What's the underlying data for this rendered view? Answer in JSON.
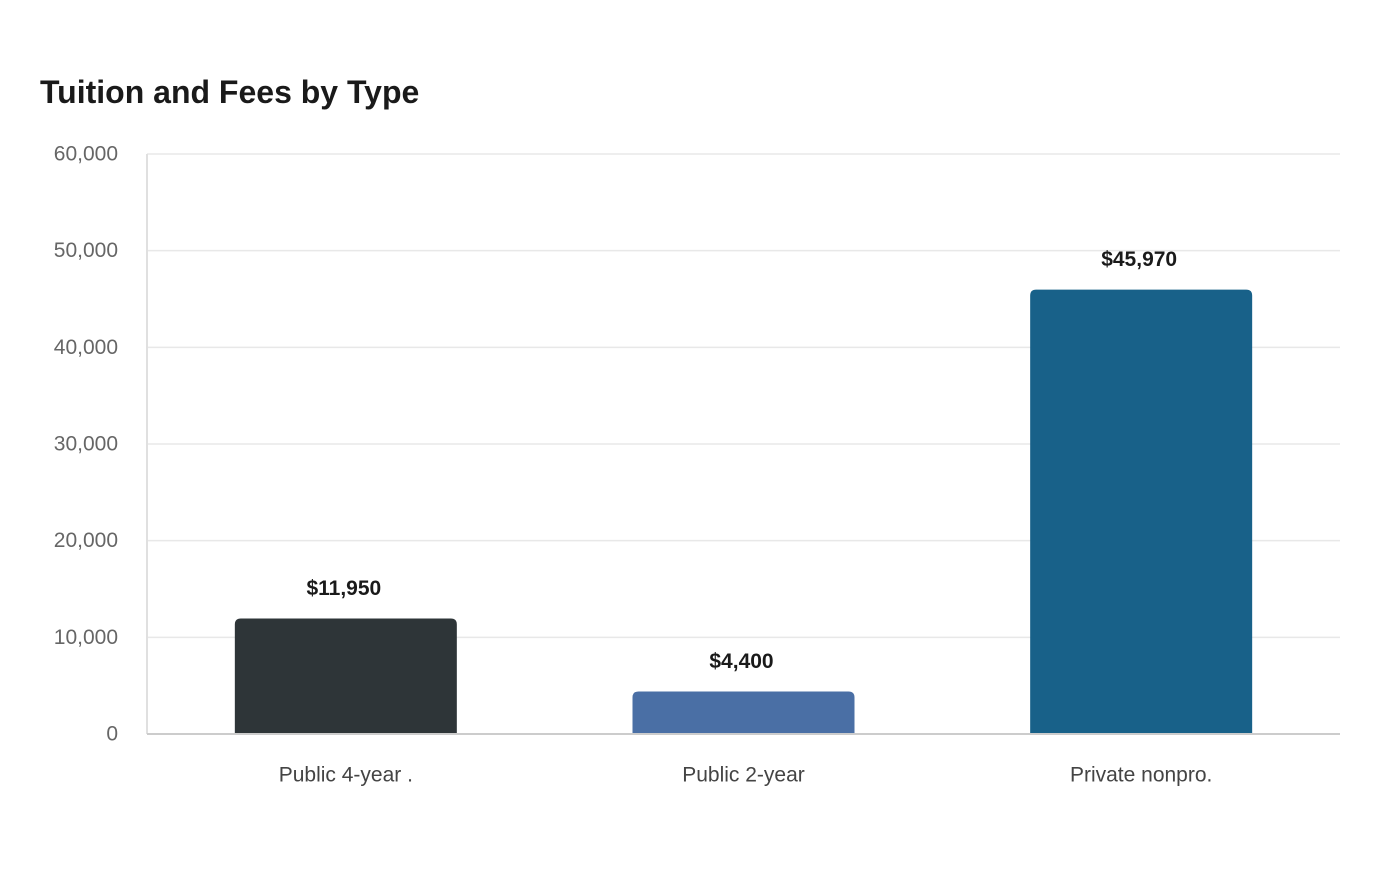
{
  "chart_data": {
    "type": "bar",
    "title": "Tuition and Fees by Type",
    "categories": [
      "Public 4-year .",
      "Public 2-year",
      "Private nonpro."
    ],
    "values": [
      11950,
      4400,
      45970
    ],
    "value_labels": [
      "$11,950",
      "$4,400",
      "$45,970"
    ],
    "colors": [
      "#2e3538",
      "#4a6fa5",
      "#186189"
    ],
    "ylim": [
      0,
      60000
    ],
    "yticks": [
      0,
      10000,
      20000,
      30000,
      40000,
      50000,
      60000
    ],
    "ytick_labels": [
      "0",
      "10,000",
      "20,000",
      "30,000",
      "40,000",
      "50,000",
      "60,000"
    ],
    "grid": true,
    "xlabel": "",
    "ylabel": ""
  }
}
